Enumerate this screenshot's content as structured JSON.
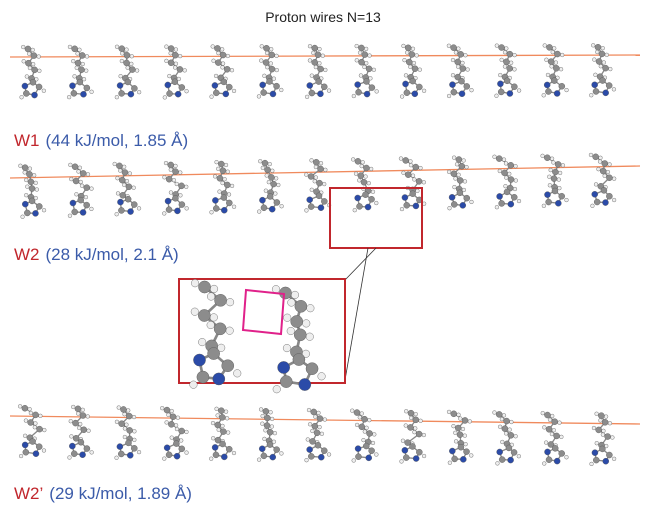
{
  "title": "Proton wires N=13",
  "wires": [
    {
      "name": "W1",
      "details": "(44 kJ/mol, 1.85 Å)"
    },
    {
      "name": "W2",
      "details": "(28 kJ/mol, 2.1 Å)"
    },
    {
      "name": "W2’",
      "details": "(29 kJ/mol, 1.89 Å)"
    }
  ]
}
